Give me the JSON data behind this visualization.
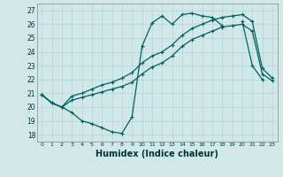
{
  "xlabel": "Humidex (Indice chaleur)",
  "bg_color": "#d0e8e8",
  "grid_color": "#b0d0d0",
  "line_color": "#006060",
  "xlim": [
    -0.5,
    23.5
  ],
  "ylim": [
    17.5,
    27.5
  ],
  "yticks": [
    18,
    19,
    20,
    21,
    22,
    23,
    24,
    25,
    26,
    27
  ],
  "xticks": [
    0,
    1,
    2,
    3,
    4,
    5,
    6,
    7,
    8,
    9,
    10,
    11,
    12,
    13,
    14,
    15,
    16,
    17,
    18,
    19,
    20,
    21,
    22,
    23
  ],
  "hours": [
    0,
    1,
    2,
    3,
    4,
    5,
    6,
    7,
    8,
    9,
    10,
    11,
    12,
    13,
    14,
    15,
    16,
    17,
    18,
    19,
    20,
    21,
    22,
    23
  ],
  "line_wavy": [
    20.9,
    20.3,
    20.0,
    19.6,
    19.0,
    18.8,
    18.5,
    18.2,
    18.1,
    19.3,
    24.4,
    26.1,
    26.6,
    26.0,
    26.7,
    26.8,
    26.6,
    26.5,
    25.9,
    null,
    26.2,
    23.0,
    22.0,
    null
  ],
  "line_upper": [
    20.9,
    20.3,
    20.0,
    20.8,
    21.0,
    21.3,
    21.6,
    21.8,
    22.1,
    22.5,
    23.2,
    23.7,
    24.0,
    24.5,
    25.2,
    25.7,
    26.0,
    26.3,
    26.5,
    26.6,
    26.7,
    26.2,
    22.8,
    22.1
  ],
  "line_lower": [
    20.9,
    20.3,
    20.0,
    20.5,
    20.7,
    20.9,
    21.1,
    21.3,
    21.5,
    21.8,
    22.4,
    22.9,
    23.2,
    23.7,
    24.4,
    24.9,
    25.2,
    25.5,
    25.8,
    25.9,
    26.0,
    25.5,
    22.4,
    21.9
  ]
}
